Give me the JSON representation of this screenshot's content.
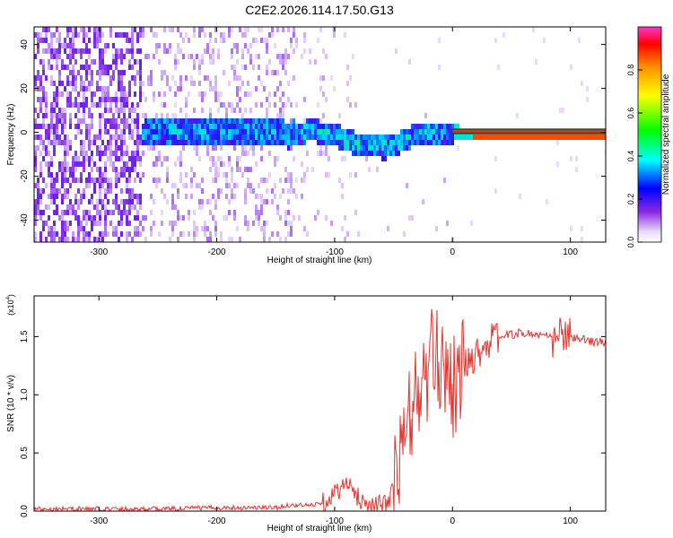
{
  "page": {
    "title": "C2E2.2026.114.17.50.G13"
  },
  "chart_data": [
    {
      "type": "heatmap",
      "title": "C2E2.2026.114.17.50.G13",
      "xlabel": "Height of straight line (km)",
      "ylabel": "Frequency (Hz)",
      "xlim": [
        -355,
        130
      ],
      "ylim": [
        -50,
        48
      ],
      "xticks": [
        -300,
        -200,
        -100,
        0,
        100
      ],
      "yticks": [
        -40,
        -20,
        0,
        20,
        40
      ],
      "xtick_labels": [
        "-300",
        "-200",
        "-100",
        "0",
        "100"
      ],
      "ytick_labels": [
        "-40",
        "-20",
        "0",
        "20",
        "40"
      ],
      "colorbar": {
        "label": "Normalized spectral amplitude",
        "range": [
          0,
          1
        ],
        "ticks": [
          0.0,
          0.2,
          0.4,
          0.6,
          0.8
        ],
        "tick_labels": [
          "0.0",
          "0.2",
          "0.4",
          "0.6",
          "0.8"
        ]
      },
      "ridge": {
        "x": [
          -265,
          -250,
          -220,
          -200,
          -180,
          -160,
          -140,
          -120,
          -100,
          -90,
          -80,
          -70,
          -60,
          -50,
          -40,
          -30,
          -20,
          -10,
          0,
          20,
          60,
          100,
          130
        ],
        "y": [
          0,
          2,
          1,
          2,
          1,
          2,
          0,
          2,
          0,
          -3,
          -4,
          -5,
          -6,
          -5,
          -2,
          1,
          0,
          1,
          1,
          0.5,
          0.5,
          0.5,
          0.5
        ]
      }
    },
    {
      "type": "line",
      "xlabel": "Height of straight line (km)",
      "ylabel": "SNR (10 * v/v)",
      "multiplier_label": "(x10",
      "multiplier_exp": "4",
      "multiplier_close": ")",
      "xlim": [
        -355,
        130
      ],
      "ylim": [
        0,
        1.85
      ],
      "xticks": [
        -300,
        -200,
        -100,
        0,
        100
      ],
      "yticks": [
        0.0,
        0.5,
        1.0,
        1.5
      ],
      "xtick_labels": [
        "-300",
        "-200",
        "-100",
        "0",
        "100"
      ],
      "ytick_labels": [
        "0.0",
        "0.5",
        "1.0",
        "1.5"
      ],
      "series": [
        {
          "name": "SNR",
          "color": "#e8342e",
          "x": [
            -355,
            -300,
            -250,
            -200,
            -150,
            -140,
            -120,
            -110,
            -100,
            -95,
            -90,
            -85,
            -80,
            -75,
            -70,
            -60,
            -55,
            -50,
            -45,
            -42,
            -38,
            -35,
            -32,
            -30,
            -28,
            -25,
            -22,
            -20,
            -18,
            -15,
            -12,
            -10,
            -8,
            -5,
            -2,
            0,
            5,
            10,
            15,
            20,
            25,
            30,
            35,
            40,
            50,
            60,
            70,
            80,
            85,
            90,
            92,
            95,
            98,
            100,
            105,
            110,
            120,
            130
          ],
          "y": [
            0.02,
            0.02,
            0.02,
            0.03,
            0.03,
            0.05,
            0.05,
            0.08,
            0.15,
            0.2,
            0.22,
            0.18,
            0.12,
            0.08,
            0.05,
            0.05,
            0.08,
            0.2,
            0.4,
            0.55,
            0.75,
            0.85,
            1.0,
            0.9,
            1.1,
            1.05,
            1.15,
            1.2,
            1.3,
            1.25,
            1.3,
            1.25,
            1.35,
            1.2,
            1.3,
            1.05,
            1.15,
            1.25,
            1.3,
            1.35,
            1.4,
            1.45,
            1.48,
            1.5,
            1.52,
            1.53,
            1.52,
            1.5,
            1.48,
            1.45,
            1.6,
            1.5,
            1.45,
            1.5,
            1.48,
            1.47,
            1.46,
            1.45
          ]
        }
      ]
    }
  ]
}
